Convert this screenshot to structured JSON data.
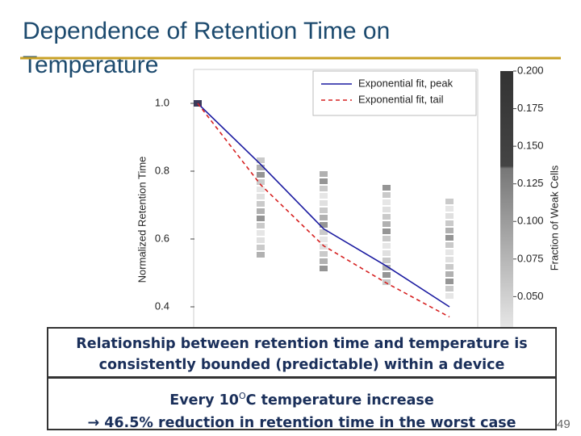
{
  "slide_title": [
    "Dependence of Retention Time on",
    "Temperature"
  ],
  "callouts": [
    [
      "Relationship between retention time and temperature is",
      "consistently bounded (predictable) within a device"
    ],
    [
      "Every 10",
      "O",
      "C temperature increase",
      "→ 46.5% reduction in retention time in the worst case"
    ]
  ],
  "page_number": "49",
  "chart_data": {
    "type": "line",
    "ylabel": "Normalized Retention Time",
    "categories": [
      null,
      null,
      null,
      null,
      null
    ],
    "series": [
      {
        "name": "Exponential fit, peak",
        "color": "#1a1aa0",
        "dash": false,
        "values": [
          1.0,
          0.82,
          0.63,
          0.52,
          0.4
        ]
      },
      {
        "name": "Exponential fit, tail",
        "color": "#d62020",
        "dash": true,
        "values": [
          1.0,
          0.76,
          0.58,
          0.47,
          0.37
        ]
      }
    ],
    "ylim": [
      0.3,
      1.1
    ],
    "yticks": [
      {
        "value": 0.4,
        "label": "0.4"
      },
      {
        "value": 0.6,
        "label": "0.6"
      },
      {
        "value": 0.8,
        "label": "0.8"
      },
      {
        "value": 1.0,
        "label": "1.0"
      }
    ],
    "colorbar": {
      "label": "Fraction of Weak Cells",
      "lim": [
        0.04,
        0.2
      ],
      "ticks": [
        {
          "value": 0.05,
          "label": "0.050"
        },
        {
          "value": 0.075,
          "label": "0.075"
        },
        {
          "value": 0.1,
          "label": "0.100"
        },
        {
          "value": 0.125,
          "label": "0.125"
        },
        {
          "value": 0.15,
          "label": "0.150"
        },
        {
          "value": 0.175,
          "label": "0.175"
        },
        {
          "value": 0.2,
          "label": "0.200"
        }
      ]
    }
  }
}
